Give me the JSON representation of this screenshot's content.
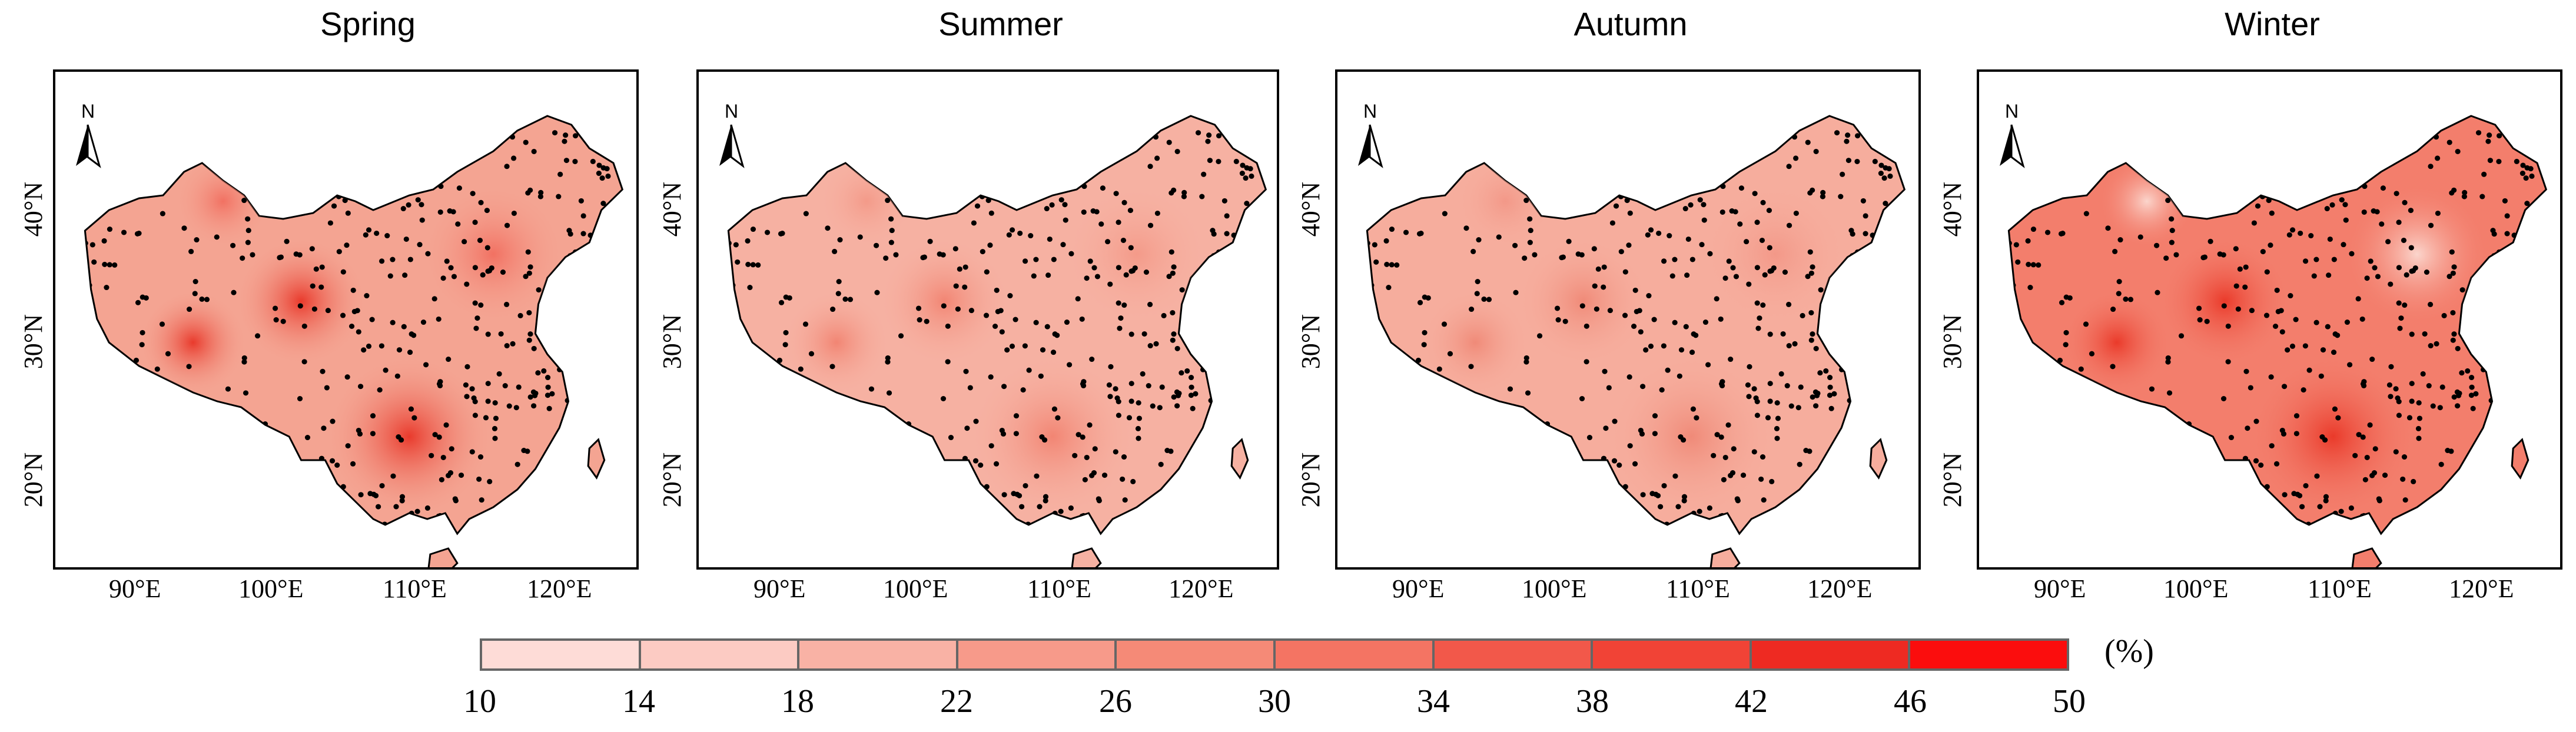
{
  "panels": [
    {
      "title": "Spring",
      "lat_labels": [
        "40°N",
        "30°N",
        "20°N"
      ],
      "lon_labels": [
        "90°E",
        "100°E",
        "110°E",
        "120°E"
      ],
      "north_label": "N",
      "colors": {
        "base": "#f4a492",
        "hot1": "#e93a2c",
        "hot2": "#f27162"
      }
    },
    {
      "title": "Summer",
      "lat_labels": [
        "40°N",
        "30°N",
        "20°N"
      ],
      "lon_labels": [
        "90°E",
        "100°E",
        "110°E",
        "120°E"
      ],
      "north_label": "N",
      "colors": {
        "base": "#f6b1a2",
        "hot1": "#f28573",
        "hot2": "#f49a89"
      }
    },
    {
      "title": "Autumn",
      "lat_labels": [
        "40°N",
        "30°N",
        "20°N"
      ],
      "lon_labels": [
        "90°E",
        "100°E",
        "110°E",
        "120°E"
      ],
      "north_label": "N",
      "colors": {
        "base": "#f6ad9d",
        "hot1": "#f08a78",
        "hot2": "#f39888"
      }
    },
    {
      "title": "Winter",
      "lat_labels": [
        "40°N",
        "30°N",
        "20°N"
      ],
      "lon_labels": [
        "90°E",
        "100°E",
        "110°E",
        "120°E"
      ],
      "north_label": "N",
      "colors": {
        "base": "#f37e6c",
        "hot1": "#ea3a2a",
        "hot2": "#fbd5cc"
      }
    }
  ],
  "colorbar": {
    "ticks": [
      "10",
      "14",
      "18",
      "22",
      "26",
      "30",
      "34",
      "38",
      "42",
      "46",
      "50"
    ],
    "colors": [
      "#fff0ee",
      "#fedcd7",
      "#fccbc3",
      "#f9b2a5",
      "#f79a8a",
      "#f58a77",
      "#f47463",
      "#f2584a",
      "#f14336",
      "#ee2a22",
      "#fb0d0d"
    ],
    "unit": "(%)"
  }
}
